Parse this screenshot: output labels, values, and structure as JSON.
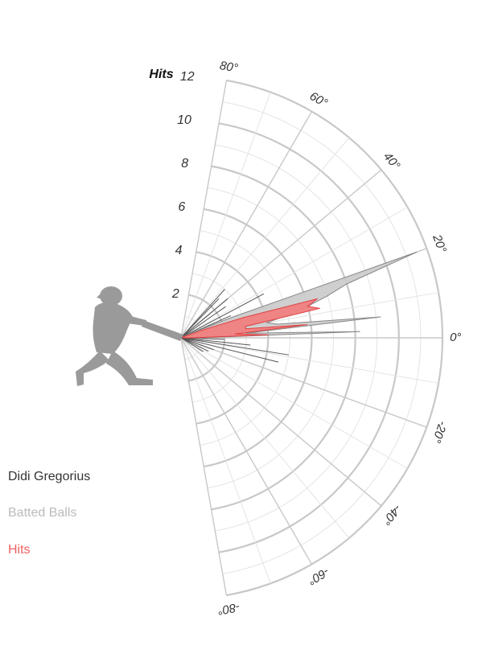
{
  "chart_data": {
    "type": "radial-area",
    "title": "",
    "player": "Didi Gregorius",
    "radial_axis_label": "Hits",
    "radial_ticks": [
      "2",
      "4",
      "6",
      "8",
      "10",
      "12"
    ],
    "rmax": 12,
    "angle_ticks": [
      "80°",
      "60°",
      "40°",
      "20°",
      "0°",
      "-20°",
      "-40°",
      "-60°",
      "-80°"
    ],
    "angle_range": [
      -80,
      80
    ],
    "legend": [
      {
        "name": "Batted Balls",
        "color": "#bbbbbb"
      },
      {
        "name": "Hits",
        "color": "#f06060"
      }
    ],
    "series": [
      {
        "name": "Batted Balls",
        "color": "#cccccc",
        "stroke": "#888888",
        "points": [
          {
            "angle": 0,
            "value": 1
          },
          {
            "angle": 2,
            "value": 8.2
          },
          {
            "angle": 4,
            "value": 3.0
          },
          {
            "angle": 6,
            "value": 9.2
          },
          {
            "angle": 8,
            "value": 4.5
          },
          {
            "angle": 10,
            "value": 4.0
          },
          {
            "angle": 12,
            "value": 5.0
          },
          {
            "angle": 14,
            "value": 6.0
          },
          {
            "angle": 16,
            "value": 7.0
          },
          {
            "angle": 18,
            "value": 8.0
          },
          {
            "angle": 20,
            "value": 11.5
          },
          {
            "angle": 22,
            "value": 2.5
          },
          {
            "angle": 24,
            "value": 0.5
          }
        ]
      },
      {
        "name": "Hits",
        "color": "#f08080",
        "stroke": "#e04040",
        "points": [
          {
            "angle": 0,
            "value": 0.5
          },
          {
            "angle": 2,
            "value": 4.0
          },
          {
            "angle": 4,
            "value": 2.5
          },
          {
            "angle": 6,
            "value": 5.8
          },
          {
            "angle": 8,
            "value": 3.0
          },
          {
            "angle": 10,
            "value": 3.0
          },
          {
            "angle": 12,
            "value": 6.5
          },
          {
            "angle": 14,
            "value": 6.0
          },
          {
            "angle": 16,
            "value": 6.5
          },
          {
            "angle": 18,
            "value": 3.0
          },
          {
            "angle": 20,
            "value": 1.0
          }
        ]
      }
    ],
    "spikes": [
      {
        "angle": 48,
        "value": 3.0
      },
      {
        "angle": 46,
        "value": 2.5
      },
      {
        "angle": 40,
        "value": 2.8
      },
      {
        "angle": 35,
        "value": 2.5
      },
      {
        "angle": 28,
        "value": 4.3
      },
      {
        "angle": 24,
        "value": 2.5
      },
      {
        "angle": 12,
        "value": 2.0
      },
      {
        "angle": -2,
        "value": 2.0
      },
      {
        "angle": -6,
        "value": 3.2
      },
      {
        "angle": -9,
        "value": 5.0
      },
      {
        "angle": -14,
        "value": 4.6
      },
      {
        "angle": -20,
        "value": 1.6
      },
      {
        "angle": -26,
        "value": 1.4
      },
      {
        "angle": -32,
        "value": 1.2
      }
    ]
  }
}
